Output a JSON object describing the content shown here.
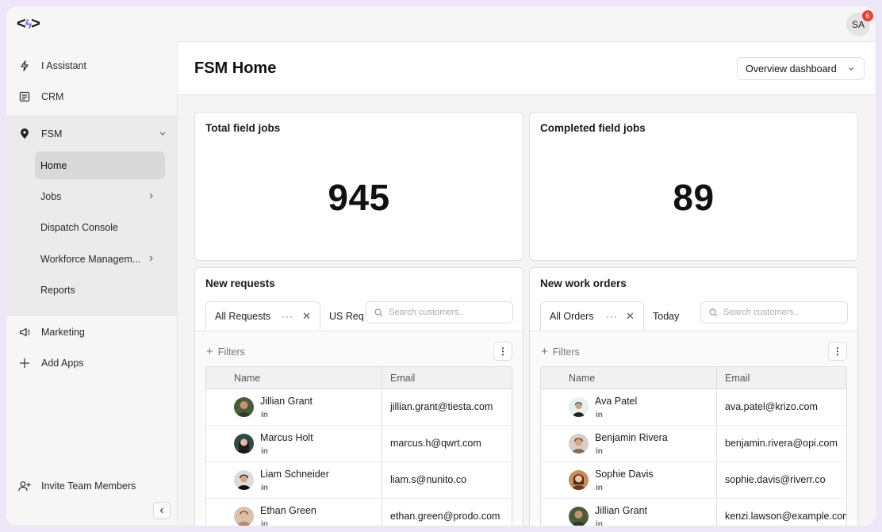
{
  "app": {
    "logo_text": "</>",
    "user_initials": "SA",
    "notification_count": "6"
  },
  "sidebar": {
    "items": [
      {
        "label": "I Assistant",
        "icon": "lightning-icon"
      },
      {
        "label": "CRM",
        "icon": "contacts-card-icon"
      },
      {
        "label": "FSM",
        "icon": "location-pin-icon"
      },
      {
        "label": "Marketing",
        "icon": "megaphone-icon"
      },
      {
        "label": "Add Apps",
        "icon": "plus-icon"
      }
    ],
    "fsm_sub": [
      {
        "label": "Home"
      },
      {
        "label": "Jobs"
      },
      {
        "label": "Dispatch Console"
      },
      {
        "label": "Workforce Managem..."
      },
      {
        "label": "Reports"
      }
    ],
    "invite_label": "Invite Team Members"
  },
  "header": {
    "title": "FSM Home",
    "dashboard_select": "Overview dashboard"
  },
  "stats": {
    "total": {
      "title": "Total field jobs",
      "value": "945"
    },
    "completed": {
      "title": "Completed field jobs",
      "value": "89"
    }
  },
  "requests": {
    "title": "New requests",
    "tabs": [
      "All Requests",
      "US Req"
    ],
    "search_placeholder": "Search customers..",
    "filters_label": "Filters",
    "columns": [
      "Name",
      "Email"
    ],
    "rows": [
      {
        "name": "Jillian Grant",
        "email": "jillian.grant@tiesta.com",
        "social": "in"
      },
      {
        "name": "Marcus Holt",
        "email": "marcus.h@qwrt.com",
        "social": "in"
      },
      {
        "name": "Liam Schneider",
        "email": "liam.s@nunito.co",
        "social": "in"
      },
      {
        "name": "Ethan Green",
        "email": "ethan.green@prodo.com",
        "social": "in"
      }
    ]
  },
  "orders": {
    "title": "New work orders",
    "tabs": [
      "All Orders",
      "Today"
    ],
    "search_placeholder": "Search customers..",
    "filters_label": "Filters",
    "columns": [
      "Name",
      "Email"
    ],
    "rows": [
      {
        "name": "Ava Patel",
        "email": "ava.patel@krizo.com",
        "social": "in"
      },
      {
        "name": "Benjamin Rivera",
        "email": "benjamin.rivera@opi.com",
        "social": "in"
      },
      {
        "name": "Sophie Davis",
        "email": "sophie.davis@riverr.co",
        "social": "in"
      },
      {
        "name": "Jillian Grant",
        "email": "kenzi.lawson@example.com",
        "social": "in"
      }
    ]
  },
  "colors": {
    "accent": "#7b5cf0",
    "badge": "#ef3e36",
    "sidebar_bg": "#f6f6f6",
    "active_bg": "#d9d9d9"
  }
}
